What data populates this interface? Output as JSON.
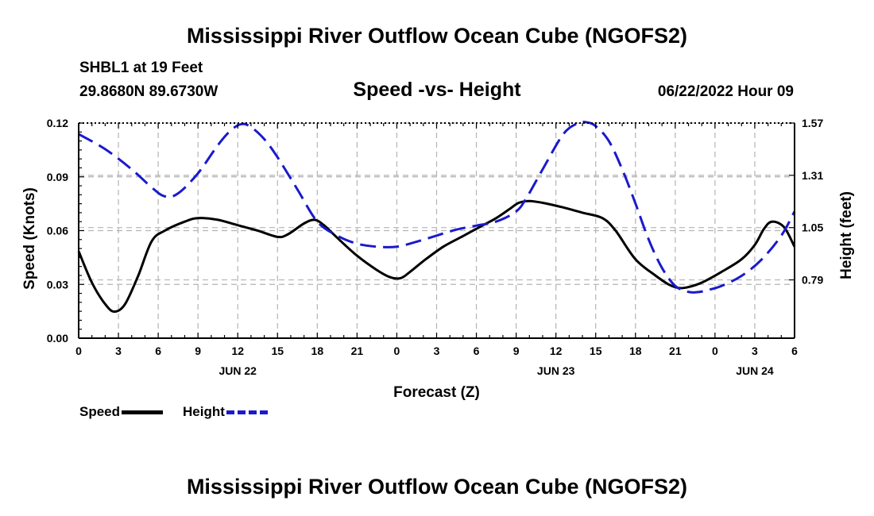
{
  "title_top": "Mississippi River Outflow Ocean Cube (NGOFS2)",
  "title_bottom": "Mississippi River Outflow Ocean Cube (NGOFS2)",
  "station": "SHBL1 at 19 Feet",
  "coords": "29.8680N  89.6730W",
  "subtitle": "Speed -vs- Height",
  "datetime": "06/22/2022 Hour 09",
  "colors": {
    "speed": "#000000",
    "height": "#1a1acc",
    "grid": "#b4b4b4"
  },
  "chart_data": {
    "type": "line",
    "xlabel": "Forecast (Z)",
    "ylabel_left": "Speed (Knots)",
    "ylabel_right": "Height (feet)",
    "x_unit": "hours since 2022-06-22 00Z",
    "xlim": [
      0,
      54
    ],
    "ylim_left": [
      0,
      0.12
    ],
    "ylim_right": [
      0.5,
      1.57
    ],
    "grid": true,
    "x_ticks": [
      {
        "x": 0,
        "label": "0"
      },
      {
        "x": 3,
        "label": "3"
      },
      {
        "x": 6,
        "label": "6"
      },
      {
        "x": 9,
        "label": "9"
      },
      {
        "x": 12,
        "label": "12"
      },
      {
        "x": 15,
        "label": "15"
      },
      {
        "x": 18,
        "label": "18"
      },
      {
        "x": 21,
        "label": "21"
      },
      {
        "x": 24,
        "label": "0"
      },
      {
        "x": 27,
        "label": "3"
      },
      {
        "x": 30,
        "label": "6"
      },
      {
        "x": 33,
        "label": "9"
      },
      {
        "x": 36,
        "label": "12"
      },
      {
        "x": 39,
        "label": "15"
      },
      {
        "x": 42,
        "label": "18"
      },
      {
        "x": 45,
        "label": "21"
      },
      {
        "x": 48,
        "label": "0"
      },
      {
        "x": 51,
        "label": "3"
      },
      {
        "x": 54,
        "label": "6"
      }
    ],
    "day_labels": [
      {
        "x": 12,
        "label": "JUN 22"
      },
      {
        "x": 36,
        "label": "JUN 23"
      },
      {
        "x": 51,
        "label": "JUN 24"
      }
    ],
    "y_ticks_left": [
      {
        "v": 0,
        "label": "0.00"
      },
      {
        "v": 0.03,
        "label": "0.03"
      },
      {
        "v": 0.06,
        "label": "0.06"
      },
      {
        "v": 0.09,
        "label": "0.09"
      },
      {
        "v": 0.12,
        "label": "0.12"
      }
    ],
    "y_ticks_right": [
      {
        "v": 0.79,
        "label": "0.79"
      },
      {
        "v": 1.05,
        "label": "1.05"
      },
      {
        "v": 1.31,
        "label": "1.31"
      },
      {
        "v": 1.57,
        "label": "1.57"
      }
    ],
    "series": [
      {
        "name": "Speed",
        "axis": "left",
        "style": "solid",
        "x": [
          0,
          1,
          2,
          2.7,
          3.5,
          4.5,
          5.5,
          6.5,
          8,
          9,
          10.5,
          12,
          13.5,
          15,
          15.8,
          17,
          17.8,
          18.5,
          19.5,
          21,
          22.5,
          23.5,
          24.3,
          25,
          26,
          27.5,
          29,
          30.5,
          31.5,
          32.5,
          33.2,
          34,
          35,
          36.5,
          38,
          39.5,
          40.5,
          42,
          43.5,
          44.5,
          45.3,
          46,
          47,
          48.5,
          50,
          51,
          51.7,
          52.3,
          53.2,
          54
        ],
        "values": [
          0.0485,
          0.031,
          0.019,
          0.0148,
          0.019,
          0.035,
          0.054,
          0.06,
          0.065,
          0.067,
          0.066,
          0.063,
          0.06,
          0.0565,
          0.058,
          0.064,
          0.066,
          0.063,
          0.056,
          0.046,
          0.038,
          0.034,
          0.0335,
          0.037,
          0.043,
          0.051,
          0.057,
          0.063,
          0.067,
          0.072,
          0.0755,
          0.0765,
          0.0755,
          0.073,
          0.07,
          0.067,
          0.06,
          0.044,
          0.035,
          0.03,
          0.028,
          0.0285,
          0.031,
          0.037,
          0.044,
          0.052,
          0.061,
          0.065,
          0.062,
          0.051
        ]
      },
      {
        "name": "Height",
        "axis": "right",
        "style": "dashed",
        "x": [
          0,
          2,
          4,
          5.5,
          6.5,
          7.5,
          9,
          10.5,
          11.5,
          12.3,
          13,
          14,
          15,
          16.5,
          18,
          19.5,
          21,
          22.5,
          24,
          25.5,
          27,
          28.5,
          30,
          31.5,
          33,
          33.8,
          35,
          36.5,
          37.5,
          38.2,
          39,
          40,
          41,
          42,
          43,
          44,
          45,
          46,
          46.8,
          47.5,
          48.5,
          50,
          51.5,
          53,
          54
        ],
        "values": [
          1.515,
          1.44,
          1.34,
          1.25,
          1.205,
          1.22,
          1.32,
          1.46,
          1.535,
          1.565,
          1.55,
          1.49,
          1.4,
          1.24,
          1.08,
          1.01,
          0.97,
          0.955,
          0.955,
          0.98,
          1.01,
          1.04,
          1.06,
          1.08,
          1.13,
          1.2,
          1.34,
          1.51,
          1.565,
          1.575,
          1.555,
          1.48,
          1.34,
          1.17,
          0.99,
          0.85,
          0.76,
          0.73,
          0.73,
          0.74,
          0.76,
          0.81,
          0.89,
          1.01,
          1.13
        ]
      }
    ]
  },
  "legend": {
    "speed_label": "Speed",
    "height_label": "Height"
  }
}
